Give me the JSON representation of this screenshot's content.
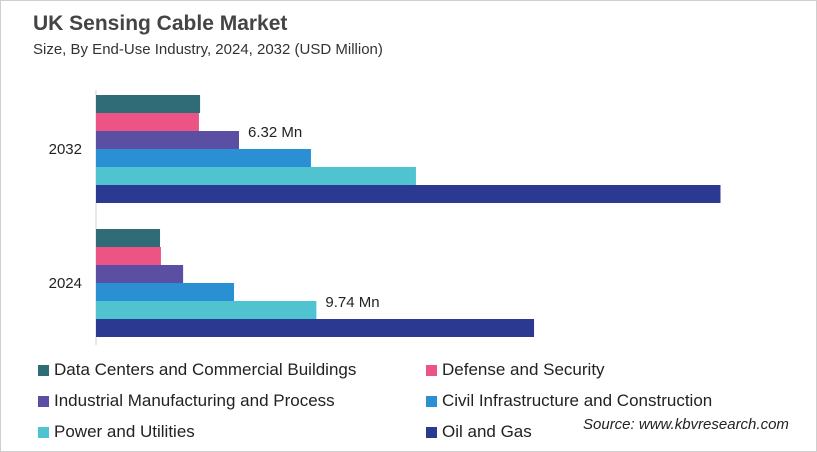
{
  "chart_data": {
    "type": "bar",
    "orientation": "horizontal",
    "title": "UK Sensing Cable Market",
    "subtitle": "Size, By End-Use Industry, 2024, 2032 (USD Million)",
    "categories": [
      "2032",
      "2024"
    ],
    "series": [
      {
        "name": "Data Centers and Commercial Buildings",
        "color": "#2f6c78",
        "values": [
          4.6,
          2.83
        ]
      },
      {
        "name": "Defense and Security",
        "color": "#ec5486",
        "values": [
          4.55,
          2.87
        ]
      },
      {
        "name": "Industrial Manufacturing and Process",
        "color": "#5a4fa2",
        "values": [
          6.32,
          3.85
        ]
      },
      {
        "name": "Civil Infrastructure and Construction",
        "color": "#2a8fd3",
        "values": [
          9.5,
          6.1
        ]
      },
      {
        "name": "Power and Utilities",
        "color": "#50c3d0",
        "values": [
          14.14,
          9.74
        ]
      },
      {
        "name": "Oil and Gas",
        "color": "#2b3990",
        "values": [
          27.6,
          19.36
        ]
      }
    ],
    "data_labels": [
      {
        "category": "2032",
        "series": "Industrial Manufacturing and Process",
        "text": "6.32 Mn"
      },
      {
        "category": "2024",
        "series": "Power and Utilities",
        "text": "9.74 Mn"
      }
    ],
    "legend": "bottom",
    "grid": false
  },
  "source": "Source: www.kbvresearch.com"
}
